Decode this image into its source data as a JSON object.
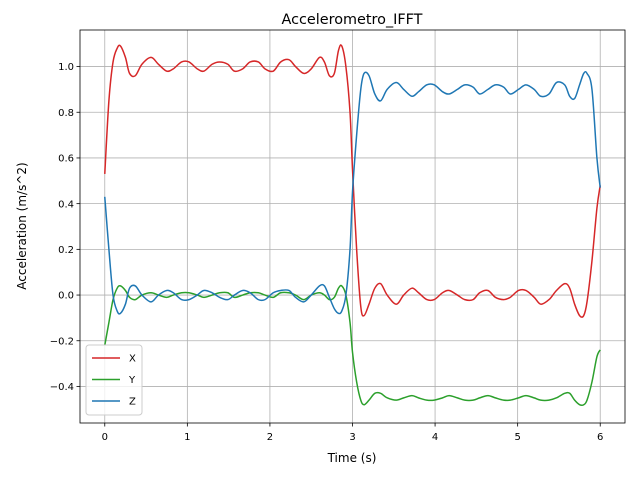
{
  "chart_data": {
    "type": "line",
    "title": "Accelerometro_IFFT",
    "xlabel": "Time (s)",
    "ylabel": "Acceleration (m/s^2)",
    "xlim": [
      -0.3,
      6.3
    ],
    "ylim": [
      -0.56,
      1.16
    ],
    "xticks": [
      0,
      1,
      2,
      3,
      4,
      5,
      6
    ],
    "xtick_labels": [
      "0",
      "1",
      "2",
      "3",
      "4",
      "5",
      "6"
    ],
    "yticks": [
      -0.4,
      -0.2,
      0.0,
      0.2,
      0.4,
      0.6,
      0.8,
      1.0
    ],
    "ytick_labels": [
      "−0.4",
      "−0.2",
      "0.0",
      "0.2",
      "0.4",
      "0.6",
      "0.8",
      "1.0"
    ],
    "grid": true,
    "legend_position": "lower-left",
    "series": [
      {
        "name": "X",
        "color": "#d62728",
        "x": [
          0.0,
          0.05,
          0.1,
          0.15,
          0.19,
          0.25,
          0.3,
          0.37,
          0.45,
          0.56,
          0.65,
          0.75,
          0.83,
          0.93,
          1.02,
          1.12,
          1.2,
          1.3,
          1.39,
          1.49,
          1.57,
          1.67,
          1.76,
          1.86,
          1.94,
          2.04,
          2.13,
          2.23,
          2.31,
          2.41,
          2.5,
          2.6,
          2.66,
          2.72,
          2.78,
          2.83,
          2.87,
          2.92,
          2.97,
          3.0,
          3.05,
          3.1,
          3.14,
          3.2,
          3.27,
          3.34,
          3.42,
          3.53,
          3.62,
          3.72,
          3.8,
          3.9,
          3.99,
          4.09,
          4.17,
          4.27,
          4.36,
          4.46,
          4.54,
          4.64,
          4.73,
          4.83,
          4.91,
          5.01,
          5.1,
          5.2,
          5.28,
          5.38,
          5.47,
          5.57,
          5.63,
          5.69,
          5.75,
          5.8,
          5.84,
          5.9,
          5.96,
          6.0
        ],
        "y": [
          0.53,
          0.85,
          1.02,
          1.08,
          1.09,
          1.04,
          0.97,
          0.96,
          1.01,
          1.04,
          1.01,
          0.98,
          0.99,
          1.02,
          1.02,
          0.99,
          0.98,
          1.01,
          1.02,
          1.01,
          0.98,
          0.99,
          1.02,
          1.02,
          0.99,
          0.98,
          1.02,
          1.03,
          1.0,
          0.97,
          0.99,
          1.04,
          1.02,
          0.96,
          0.97,
          1.07,
          1.09,
          1.0,
          0.8,
          0.55,
          0.2,
          -0.05,
          -0.09,
          -0.04,
          0.03,
          0.05,
          0.0,
          -0.04,
          0.0,
          0.03,
          0.01,
          -0.02,
          -0.02,
          0.01,
          0.02,
          0.0,
          -0.02,
          -0.02,
          0.01,
          0.02,
          -0.01,
          -0.02,
          -0.01,
          0.02,
          0.02,
          -0.01,
          -0.04,
          -0.02,
          0.02,
          0.05,
          0.03,
          -0.04,
          -0.09,
          -0.09,
          -0.03,
          0.15,
          0.38,
          0.48
        ]
      },
      {
        "name": "Y",
        "color": "#2ca02c",
        "x": [
          0.0,
          0.05,
          0.1,
          0.15,
          0.19,
          0.25,
          0.3,
          0.37,
          0.45,
          0.56,
          0.65,
          0.75,
          0.83,
          0.93,
          1.02,
          1.12,
          1.2,
          1.3,
          1.39,
          1.49,
          1.57,
          1.67,
          1.76,
          1.86,
          1.94,
          2.04,
          2.13,
          2.23,
          2.31,
          2.41,
          2.5,
          2.6,
          2.66,
          2.72,
          2.78,
          2.83,
          2.87,
          2.92,
          2.97,
          3.0,
          3.05,
          3.1,
          3.14,
          3.2,
          3.27,
          3.34,
          3.42,
          3.53,
          3.62,
          3.72,
          3.8,
          3.9,
          3.99,
          4.09,
          4.17,
          4.27,
          4.36,
          4.46,
          4.54,
          4.64,
          4.73,
          4.83,
          4.91,
          5.01,
          5.1,
          5.2,
          5.28,
          5.38,
          5.47,
          5.57,
          5.63,
          5.69,
          5.75,
          5.8,
          5.84,
          5.9,
          5.96,
          6.0
        ],
        "y": [
          -0.22,
          -0.12,
          -0.02,
          0.03,
          0.04,
          0.02,
          -0.01,
          -0.02,
          0.0,
          0.01,
          0.0,
          -0.01,
          0.0,
          0.01,
          0.01,
          0.0,
          -0.01,
          0.0,
          0.01,
          0.01,
          -0.01,
          0.0,
          0.01,
          0.01,
          0.0,
          -0.01,
          0.01,
          0.01,
          0.0,
          -0.02,
          0.0,
          0.01,
          0.0,
          -0.02,
          -0.01,
          0.03,
          0.04,
          0.0,
          -0.12,
          -0.25,
          -0.38,
          -0.46,
          -0.48,
          -0.46,
          -0.43,
          -0.43,
          -0.45,
          -0.46,
          -0.45,
          -0.44,
          -0.45,
          -0.46,
          -0.46,
          -0.45,
          -0.44,
          -0.45,
          -0.46,
          -0.46,
          -0.45,
          -0.44,
          -0.45,
          -0.46,
          -0.46,
          -0.45,
          -0.44,
          -0.45,
          -0.46,
          -0.46,
          -0.45,
          -0.43,
          -0.43,
          -0.46,
          -0.48,
          -0.48,
          -0.46,
          -0.38,
          -0.27,
          -0.24
        ]
      },
      {
        "name": "Z",
        "color": "#1f77b4",
        "x": [
          0.0,
          0.05,
          0.1,
          0.15,
          0.19,
          0.25,
          0.3,
          0.37,
          0.45,
          0.56,
          0.65,
          0.75,
          0.83,
          0.93,
          1.02,
          1.12,
          1.2,
          1.3,
          1.39,
          1.49,
          1.57,
          1.67,
          1.76,
          1.86,
          1.94,
          2.04,
          2.13,
          2.23,
          2.31,
          2.41,
          2.5,
          2.6,
          2.66,
          2.72,
          2.78,
          2.83,
          2.87,
          2.92,
          2.97,
          3.0,
          3.05,
          3.1,
          3.14,
          3.2,
          3.27,
          3.34,
          3.42,
          3.53,
          3.62,
          3.72,
          3.8,
          3.9,
          3.99,
          4.09,
          4.17,
          4.27,
          4.36,
          4.46,
          4.54,
          4.64,
          4.73,
          4.83,
          4.91,
          5.01,
          5.1,
          5.2,
          5.28,
          5.38,
          5.47,
          5.57,
          5.63,
          5.69,
          5.75,
          5.8,
          5.84,
          5.9,
          5.96,
          6.0
        ],
        "y": [
          0.43,
          0.2,
          0.0,
          -0.07,
          -0.08,
          -0.04,
          0.03,
          0.04,
          0.0,
          -0.03,
          0.0,
          0.02,
          0.01,
          -0.02,
          -0.02,
          0.0,
          0.02,
          0.01,
          -0.01,
          -0.02,
          0.0,
          0.02,
          0.01,
          -0.02,
          -0.02,
          0.01,
          0.02,
          0.02,
          -0.01,
          -0.03,
          0.0,
          0.04,
          0.04,
          -0.01,
          -0.06,
          -0.08,
          -0.07,
          0.0,
          0.2,
          0.45,
          0.7,
          0.9,
          0.97,
          0.96,
          0.88,
          0.85,
          0.9,
          0.93,
          0.9,
          0.87,
          0.89,
          0.92,
          0.92,
          0.89,
          0.88,
          0.9,
          0.92,
          0.91,
          0.88,
          0.9,
          0.92,
          0.91,
          0.88,
          0.9,
          0.92,
          0.9,
          0.87,
          0.88,
          0.93,
          0.92,
          0.87,
          0.86,
          0.92,
          0.97,
          0.97,
          0.9,
          0.6,
          0.47
        ]
      }
    ]
  }
}
